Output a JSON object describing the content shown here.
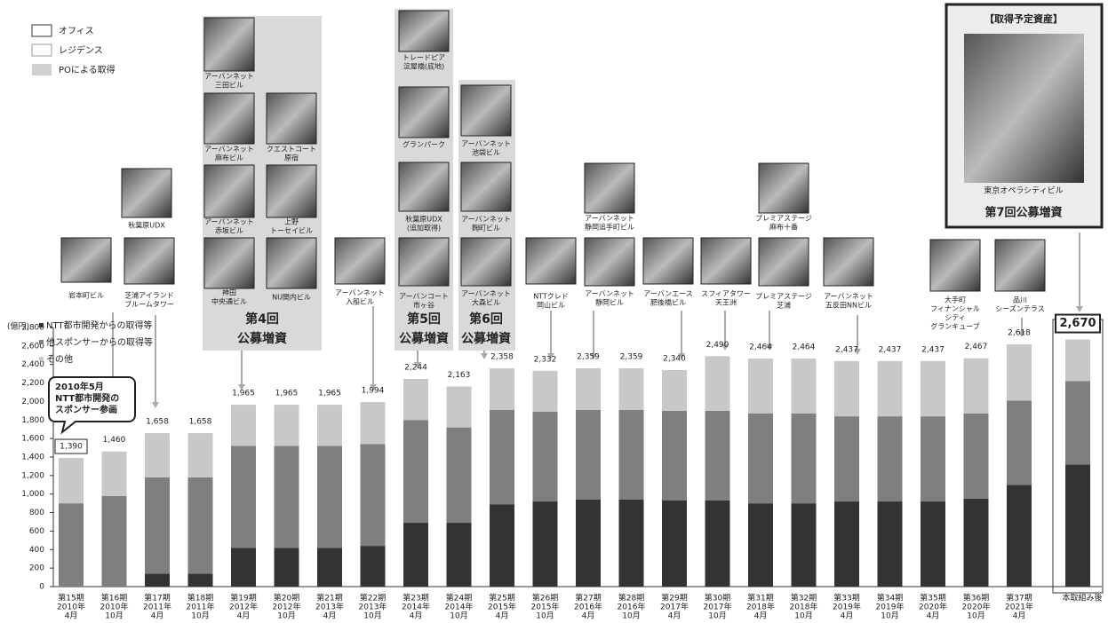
{
  "property_legend": [
    "オフィス",
    "レジデンス",
    "POによる取得"
  ],
  "buildings": [
    {
      "lines": [
        "岩本町ビル"
      ]
    },
    {
      "lines": [
        "秋葉原UDX"
      ]
    },
    {
      "lines": [
        "芝浦アイランド",
        "ブルームタワー"
      ]
    },
    {
      "lines": [
        "アーバンネット",
        "三田ビル"
      ]
    },
    {
      "lines": [
        "アーバンネット",
        "麻布ビル"
      ]
    },
    {
      "lines": [
        "クエストコート",
        "原宿"
      ]
    },
    {
      "lines": [
        "アーバンネット",
        "赤坂ビル"
      ]
    },
    {
      "lines": [
        "上野",
        "トーセイビル"
      ]
    },
    {
      "lines": [
        "神田",
        "中央通ビル"
      ]
    },
    {
      "lines": [
        "NU関内ビル"
      ]
    },
    {
      "lines": [
        "アーバンネット",
        "入船ビル"
      ]
    },
    {
      "lines": [
        "トレードピア",
        "淀屋橋(底地)"
      ]
    },
    {
      "lines": [
        "グランパーク"
      ]
    },
    {
      "lines": [
        "秋葉原UDX",
        "(追加取得)"
      ]
    },
    {
      "lines": [
        "アーバンコート",
        "市ヶ谷"
      ]
    },
    {
      "lines": [
        "アーバンネット",
        "池袋ビル"
      ]
    },
    {
      "lines": [
        "アーバンネット",
        "麹町ビル"
      ]
    },
    {
      "lines": [
        "アーバンネット",
        "大森ビル"
      ]
    },
    {
      "lines": [
        "NTTクレド",
        "岡山ビル"
      ]
    },
    {
      "lines": [
        "アーバンネット",
        "静岡追手町ビル"
      ]
    },
    {
      "lines": [
        "アーバンネット",
        "静岡ビル"
      ]
    },
    {
      "lines": [
        "アーバンエース",
        "肥後橋ビル"
      ]
    },
    {
      "lines": [
        "スフィアタワー",
        "天王洲"
      ]
    },
    {
      "lines": [
        "プレミアステージ",
        "麻布十番"
      ]
    },
    {
      "lines": [
        "プレミアステージ",
        "芝浦"
      ]
    },
    {
      "lines": [
        "アーバンネット",
        "五反田NNビル"
      ]
    },
    {
      "lines": [
        "大手町",
        "フィナンシャル",
        "シティ",
        "グランキューブ"
      ]
    },
    {
      "lines": [
        "品川",
        "シーズンテラス"
      ]
    }
  ],
  "offerings": [
    [
      "第4回",
      "公募増資"
    ],
    [
      "第5回",
      "公募増資"
    ],
    [
      "第6回",
      "公募増資"
    ]
  ],
  "planned": {
    "title": "【取得予定資産】",
    "building": "東京オペラシティビル",
    "offering": "第7回公募増資"
  },
  "chart_data": {
    "type": "bar",
    "stacked": true,
    "unit_label": "(億円)",
    "callout": [
      "2010年5月",
      "NTT都市開発の",
      "スポンサー参画"
    ],
    "categories": [
      [
        "第15期",
        "2010年",
        "4月"
      ],
      [
        "第16期",
        "2010年",
        "10月"
      ],
      [
        "第17期",
        "2011年",
        "4月"
      ],
      [
        "第18期",
        "2011年",
        "10月"
      ],
      [
        "第19期",
        "2012年",
        "4月"
      ],
      [
        "第20期",
        "2012年",
        "10月"
      ],
      [
        "第21期",
        "2013年",
        "4月"
      ],
      [
        "第22期",
        "2013年",
        "10月"
      ],
      [
        "第23期",
        "2014年",
        "4月"
      ],
      [
        "第24期",
        "2014年",
        "10月"
      ],
      [
        "第25期",
        "2015年",
        "4月"
      ],
      [
        "第26期",
        "2015年",
        "10月"
      ],
      [
        "第27期",
        "2016年",
        "4月"
      ],
      [
        "第28期",
        "2016年",
        "10月"
      ],
      [
        "第29期",
        "2017年",
        "4月"
      ],
      [
        "第30期",
        "2017年",
        "10月"
      ],
      [
        "第31期",
        "2018年",
        "4月"
      ],
      [
        "第32期",
        "2018年",
        "10月"
      ],
      [
        "第33期",
        "2019年",
        "4月"
      ],
      [
        "第34期",
        "2019年",
        "10月"
      ],
      [
        "第35期",
        "2020年",
        "4月"
      ],
      [
        "第36期",
        "2020年",
        "10月"
      ],
      [
        "第37期",
        "2021年",
        "4月"
      ],
      [
        "本取組み後"
      ]
    ],
    "series": [
      {
        "name": "NTT都市開発からの取得等",
        "color": "#333333",
        "values": [
          0,
          0,
          140,
          140,
          420,
          420,
          420,
          440,
          690,
          690,
          890,
          920,
          940,
          940,
          930,
          930,
          900,
          900,
          920,
          920,
          920,
          950,
          1100,
          1320
        ]
      },
      {
        "name": "他スポンサーからの取得等",
        "color": "#7f7f7f",
        "values": [
          900,
          980,
          1040,
          1040,
          1100,
          1100,
          1100,
          1100,
          1110,
          1030,
          1020,
          970,
          970,
          970,
          970,
          970,
          970,
          970,
          920,
          920,
          920,
          920,
          910,
          900
        ]
      },
      {
        "name": "その他",
        "color": "#c8c8c8",
        "values": [
          490,
          480,
          478,
          478,
          445,
          445,
          445,
          454,
          444,
          443,
          448,
          442,
          449,
          449,
          440,
          590,
          594,
          594,
          597,
          597,
          597,
          597,
          608,
          450
        ]
      }
    ],
    "total_labels": [
      "1,390",
      "1,460",
      "1,658",
      "1,658",
      "1,965",
      "1,965",
      "1,965",
      "1,994",
      "2,244",
      "2,163",
      "2,358",
      "2,332",
      "2,359",
      "2,359",
      "2,340",
      "2,490",
      "2,464",
      "2,464",
      "2,437",
      "2,437",
      "2,437",
      "2,467",
      "2,618",
      "2,670"
    ],
    "ylim": [
      0,
      2800
    ],
    "yticks": [
      0,
      200,
      400,
      600,
      800,
      {
        "value": 1000,
        "label": "1,000"
      },
      {
        "value": 1200,
        "label": "1,200"
      },
      {
        "value": 1400,
        "label": "1,400"
      },
      {
        "value": 1600,
        "label": "1,600"
      },
      {
        "value": 1800,
        "label": "1,800"
      },
      {
        "value": 2000,
        "label": "2,000"
      },
      {
        "value": 2200,
        "label": "2,200"
      },
      {
        "value": 2400,
        "label": "2,400"
      },
      {
        "value": 2600,
        "label": "2,600"
      },
      {
        "value": 2800,
        "label": "2,800"
      }
    ]
  }
}
